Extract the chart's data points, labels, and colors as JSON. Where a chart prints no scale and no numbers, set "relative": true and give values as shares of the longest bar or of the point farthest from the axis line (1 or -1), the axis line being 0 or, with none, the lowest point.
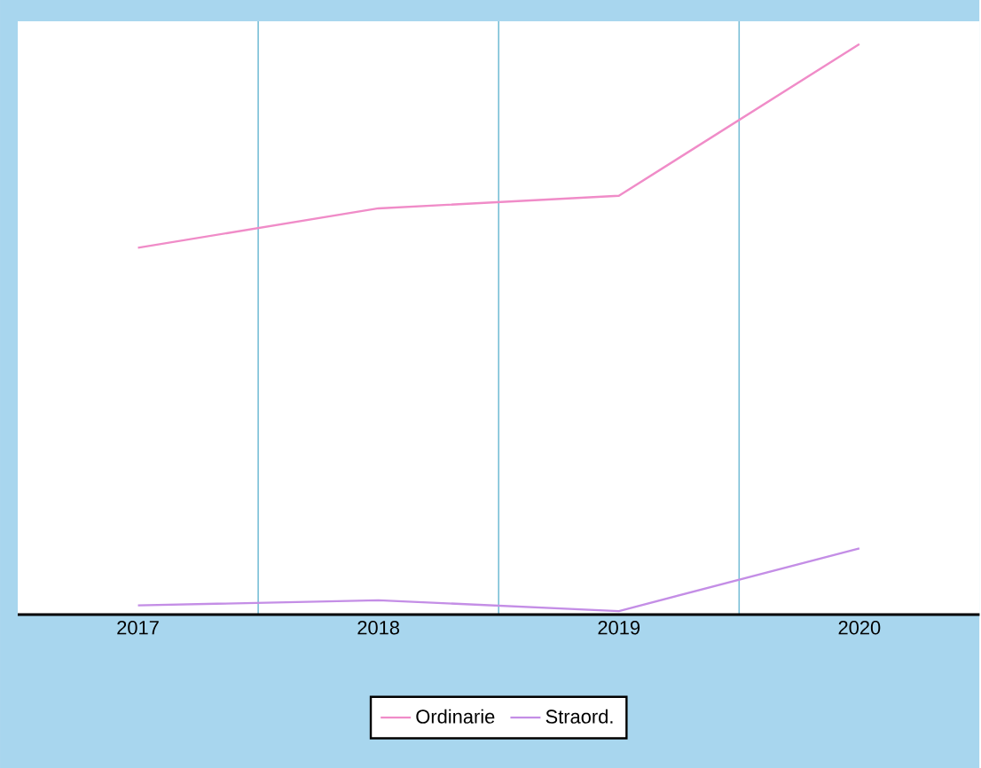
{
  "chart_data": {
    "type": "line",
    "relative": true,
    "categories": [
      "2017",
      "2018",
      "2019",
      "2020"
    ],
    "series": [
      {
        "name": "Ordinarie",
        "color": "#f08cc8",
        "values": [
          0.643,
          0.712,
          0.734,
          1
        ]
      },
      {
        "name": "Straord.",
        "color": "#c48ee6",
        "values": [
          0.016,
          0.025,
          0.006,
          0.116
        ]
      }
    ],
    "grid": true,
    "legend": "bottom",
    "tick_labels": "x",
    "marker": "none",
    "line_style": "solid"
  }
}
